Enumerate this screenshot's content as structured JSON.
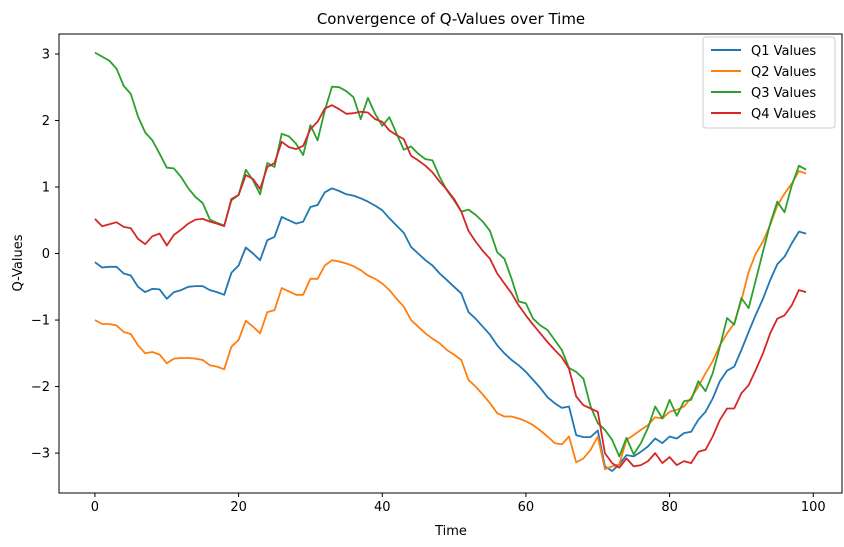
{
  "chart_data": {
    "type": "line",
    "title": "Convergence of Q-Values over Time",
    "xlabel": "Time",
    "ylabel": "Q-Values",
    "xlim": [
      -5,
      104
    ],
    "ylim": [
      -3.6,
      3.3
    ],
    "xticks": [
      0,
      20,
      40,
      60,
      80,
      100
    ],
    "yticks": [
      -3,
      -2,
      -1,
      0,
      1,
      2,
      3
    ],
    "grid": false,
    "legend_position": "top-right",
    "x": [
      0,
      1,
      2,
      3,
      4,
      5,
      6,
      7,
      8,
      9,
      10,
      11,
      12,
      13,
      14,
      15,
      16,
      17,
      18,
      19,
      20,
      21,
      22,
      23,
      24,
      25,
      26,
      27,
      28,
      29,
      30,
      31,
      32,
      33,
      34,
      35,
      36,
      37,
      38,
      39,
      40,
      41,
      42,
      43,
      44,
      45,
      46,
      47,
      48,
      49,
      50,
      51,
      52,
      53,
      54,
      55,
      56,
      57,
      58,
      59,
      60,
      61,
      62,
      63,
      64,
      65,
      66,
      67,
      68,
      69,
      70,
      71,
      72,
      73,
      74,
      75,
      76,
      77,
      78,
      79,
      80,
      81,
      82,
      83,
      84,
      85,
      86,
      87,
      88,
      89,
      90,
      91,
      92,
      93,
      94,
      95,
      96,
      97,
      98,
      99
    ],
    "series": [
      {
        "name": "Q1 Values",
        "color": "#1f77b4",
        "values": [
          -0.13,
          -0.21,
          -0.2,
          -0.2,
          -0.3,
          -0.33,
          -0.5,
          -0.58,
          -0.53,
          -0.54,
          -0.68,
          -0.58,
          -0.55,
          -0.5,
          -0.49,
          -0.49,
          -0.55,
          -0.58,
          -0.62,
          -0.29,
          -0.18,
          0.09,
          0.0,
          -0.1,
          0.2,
          0.25,
          0.55,
          0.5,
          0.45,
          0.48,
          0.7,
          0.73,
          0.92,
          0.98,
          0.94,
          0.89,
          0.87,
          0.83,
          0.78,
          0.72,
          0.65,
          0.53,
          0.42,
          0.31,
          0.1,
          0.0,
          -0.1,
          -0.18,
          -0.3,
          -0.4,
          -0.5,
          -0.6,
          -0.88,
          -0.98,
          -1.1,
          -1.22,
          -1.38,
          -1.5,
          -1.6,
          -1.68,
          -1.78,
          -1.9,
          -2.02,
          -2.16,
          -2.25,
          -2.32,
          -2.3,
          -2.73,
          -2.76,
          -2.76,
          -2.66,
          -3.2,
          -3.27,
          -3.17,
          -3.03,
          -3.05,
          -2.98,
          -2.9,
          -2.78,
          -2.85,
          -2.75,
          -2.78,
          -2.7,
          -2.68,
          -2.5,
          -2.38,
          -2.18,
          -1.92,
          -1.76,
          -1.7,
          -1.45,
          -1.18,
          -0.92,
          -0.68,
          -0.4,
          -0.16,
          -0.05,
          0.15,
          0.33,
          0.3
        ]
      },
      {
        "name": "Q2 Values",
        "color": "#ff7f0e",
        "values": [
          -1.0,
          -1.06,
          -1.06,
          -1.08,
          -1.18,
          -1.21,
          -1.38,
          -1.5,
          -1.48,
          -1.52,
          -1.65,
          -1.58,
          -1.57,
          -1.57,
          -1.58,
          -1.6,
          -1.68,
          -1.7,
          -1.74,
          -1.4,
          -1.3,
          -1.01,
          -1.1,
          -1.2,
          -0.88,
          -0.85,
          -0.52,
          -0.57,
          -0.62,
          -0.62,
          -0.38,
          -0.38,
          -0.18,
          -0.1,
          -0.12,
          -0.15,
          -0.19,
          -0.25,
          -0.33,
          -0.38,
          -0.45,
          -0.55,
          -0.68,
          -0.8,
          -1.0,
          -1.1,
          -1.2,
          -1.28,
          -1.35,
          -1.45,
          -1.52,
          -1.6,
          -1.9,
          -2.0,
          -2.12,
          -2.25,
          -2.4,
          -2.45,
          -2.45,
          -2.48,
          -2.52,
          -2.58,
          -2.66,
          -2.75,
          -2.85,
          -2.87,
          -2.75,
          -3.14,
          -3.08,
          -2.95,
          -2.75,
          -3.24,
          -3.2,
          -3.17,
          -2.8,
          -2.73,
          -2.65,
          -2.58,
          -2.46,
          -2.48,
          -2.38,
          -2.35,
          -2.3,
          -2.17,
          -2.0,
          -1.8,
          -1.62,
          -1.38,
          -1.2,
          -1.05,
          -0.7,
          -0.28,
          0.0,
          0.18,
          0.43,
          0.72,
          0.9,
          1.05,
          1.24,
          1.2
        ]
      },
      {
        "name": "Q3 Values",
        "color": "#2ca02c",
        "values": [
          3.02,
          2.96,
          2.9,
          2.78,
          2.52,
          2.4,
          2.06,
          1.82,
          1.7,
          1.5,
          1.29,
          1.28,
          1.15,
          0.98,
          0.85,
          0.76,
          0.51,
          0.46,
          0.42,
          0.8,
          0.88,
          1.26,
          1.1,
          0.89,
          1.36,
          1.3,
          1.8,
          1.76,
          1.65,
          1.48,
          1.93,
          1.7,
          2.15,
          2.51,
          2.5,
          2.44,
          2.35,
          2.02,
          2.34,
          2.1,
          1.92,
          2.05,
          1.8,
          1.56,
          1.61,
          1.5,
          1.42,
          1.4,
          1.15,
          0.95,
          0.8,
          0.63,
          0.66,
          0.58,
          0.48,
          0.34,
          0.02,
          -0.08,
          -0.38,
          -0.72,
          -0.75,
          -0.98,
          -1.08,
          -1.15,
          -1.3,
          -1.45,
          -1.72,
          -1.78,
          -1.88,
          -2.3,
          -2.55,
          -2.65,
          -2.8,
          -3.05,
          -2.77,
          -3.02,
          -2.85,
          -2.62,
          -2.3,
          -2.48,
          -2.2,
          -2.44,
          -2.22,
          -2.2,
          -1.92,
          -2.07,
          -1.8,
          -1.4,
          -0.97,
          -1.07,
          -0.67,
          -0.82,
          -0.4,
          0.03,
          0.45,
          0.78,
          0.62,
          1.02,
          1.32,
          1.26
        ]
      },
      {
        "name": "Q4 Values",
        "color": "#d62728",
        "values": [
          0.52,
          0.41,
          0.44,
          0.47,
          0.4,
          0.38,
          0.22,
          0.14,
          0.26,
          0.3,
          0.12,
          0.28,
          0.36,
          0.45,
          0.51,
          0.52,
          0.48,
          0.45,
          0.41,
          0.82,
          0.88,
          1.18,
          1.12,
          0.97,
          1.3,
          1.36,
          1.68,
          1.6,
          1.57,
          1.62,
          1.87,
          1.98,
          2.18,
          2.23,
          2.17,
          2.1,
          2.11,
          2.13,
          2.12,
          2.02,
          1.98,
          1.85,
          1.78,
          1.72,
          1.47,
          1.4,
          1.32,
          1.22,
          1.08,
          0.96,
          0.82,
          0.63,
          0.34,
          0.18,
          0.04,
          -0.08,
          -0.3,
          -0.45,
          -0.6,
          -0.78,
          -0.93,
          -1.07,
          -1.2,
          -1.33,
          -1.45,
          -1.56,
          -1.73,
          -2.15,
          -2.28,
          -2.33,
          -2.38,
          -3.0,
          -3.15,
          -3.22,
          -3.08,
          -3.2,
          -3.18,
          -3.12,
          -3.0,
          -3.15,
          -3.06,
          -3.18,
          -3.12,
          -3.15,
          -2.98,
          -2.95,
          -2.75,
          -2.5,
          -2.33,
          -2.33,
          -2.1,
          -1.98,
          -1.75,
          -1.5,
          -1.2,
          -0.98,
          -0.93,
          -0.78,
          -0.55,
          -0.58
        ]
      }
    ]
  }
}
